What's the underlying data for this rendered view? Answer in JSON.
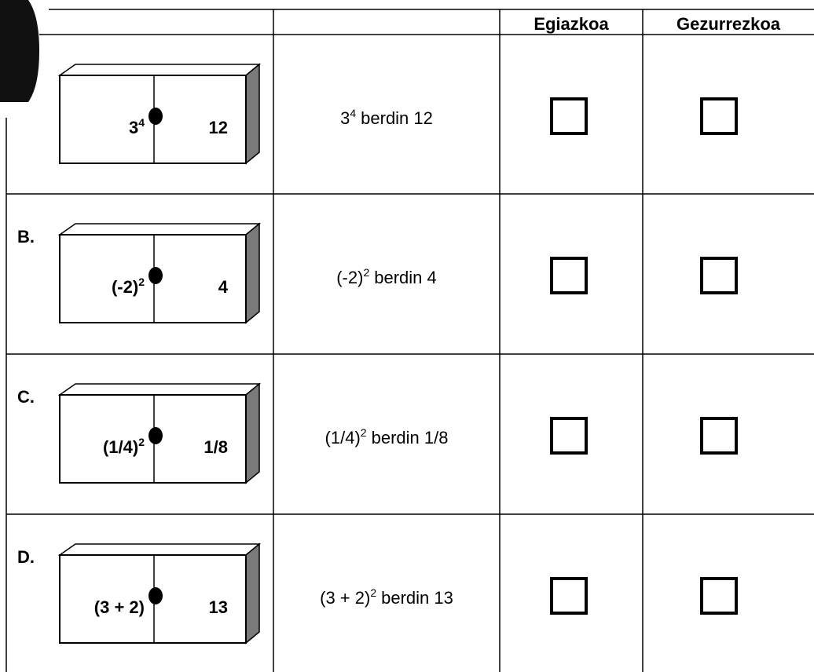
{
  "header": {
    "columns": [
      "Egiazkoa",
      "Gezurrezkoa"
    ]
  },
  "rows": [
    {
      "domino": {
        "left": "3",
        "left_exponent": "4",
        "right": "12"
      },
      "statement": {
        "expression": "3",
        "exponent": "4",
        "text": "berdin 12"
      }
    },
    {
      "label": "B.",
      "domino": {
        "left": "(-2)",
        "left_exponent": "2",
        "right": "4"
      },
      "statement": {
        "expression": "(-2)",
        "exponent": "2",
        "text": "berdin 4"
      }
    },
    {
      "label": "C.",
      "domino": {
        "left": "(1/4)",
        "left_exponent": "2",
        "right": "1/8"
      },
      "statement": {
        "expression": "(1/4)",
        "exponent": "2",
        "text": "berdin 1/8"
      }
    },
    {
      "label": "D.",
      "domino": {
        "left": "(3 + 2)",
        "right": "13"
      },
      "statement": {
        "expression": "(3 + 2)",
        "exponent": "2",
        "text": "berdin 13"
      }
    }
  ]
}
